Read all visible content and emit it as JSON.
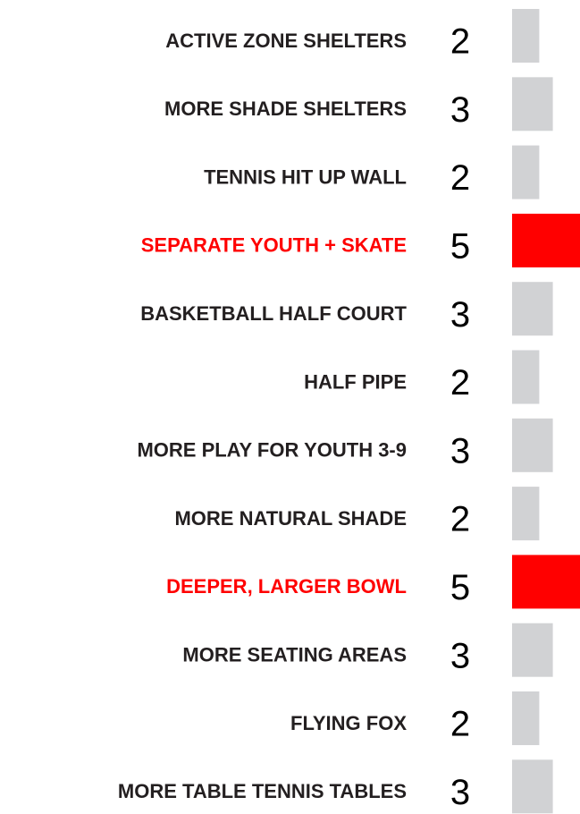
{
  "chart_data": {
    "type": "bar",
    "categories": [
      "ACTIVE ZONE SHELTERS",
      "MORE SHADE SHELTERS",
      "TENNIS HIT UP WALL",
      "SEPARATE YOUTH + SKATE",
      "BASKETBALL HALF COURT",
      "HALF PIPE",
      "MORE PLAY FOR YOUTH 3-9",
      "MORE NATURAL SHADE",
      "DEEPER, LARGER BOWL",
      "MORE SEATING AREAS",
      "FLYING FOX",
      "MORE TABLE TENNIS TABLES"
    ],
    "values": [
      2,
      3,
      2,
      5,
      3,
      2,
      3,
      2,
      5,
      3,
      2,
      3
    ],
    "colors": [
      "#d1d2d4",
      "#d1d2d4",
      "#d1d2d4",
      "#ff0000",
      "#d1d2d4",
      "#d1d2d4",
      "#d1d2d4",
      "#d1d2d4",
      "#ff0000",
      "#d1d2d4",
      "#d1d2d4",
      "#d1d2d4"
    ],
    "label_colors": [
      "#231f20",
      "#231f20",
      "#231f20",
      "#ff0000",
      "#231f20",
      "#231f20",
      "#231f20",
      "#231f20",
      "#ff0000",
      "#231f20",
      "#231f20",
      "#231f20"
    ]
  }
}
